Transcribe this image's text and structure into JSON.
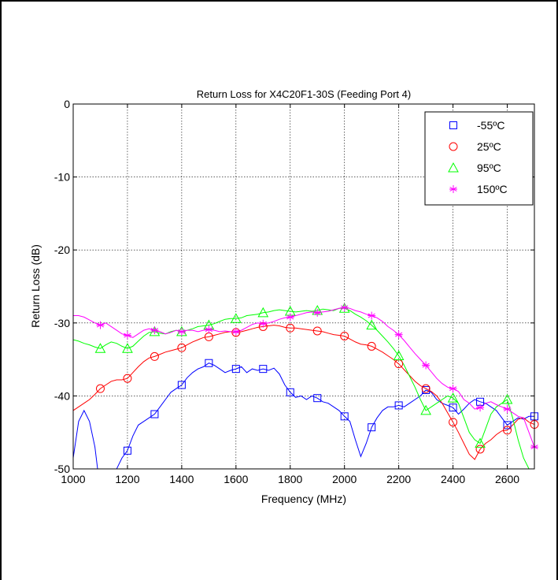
{
  "chart_data": {
    "type": "line",
    "title": "Return Loss for X4C20F1-30S (Feeding Port 4)",
    "xlabel": "Frequency (MHz)",
    "ylabel": "Return Loss (dB)",
    "xlim": [
      1000,
      2700
    ],
    "ylim": [
      -50,
      0
    ],
    "xticks": [
      1000,
      1200,
      1400,
      1600,
      1800,
      2000,
      2200,
      2400,
      2600
    ],
    "yticks": [
      0,
      -10,
      -20,
      -30,
      -40,
      -50
    ],
    "grid": true,
    "legend_position": "top-right",
    "series": [
      {
        "name": "-55ºC",
        "color": "#0000ff",
        "marker": "square",
        "x": [
          1000,
          1020,
          1040,
          1060,
          1080,
          1090,
          1100,
          1120,
          1140,
          1160,
          1180,
          1200,
          1220,
          1240,
          1260,
          1280,
          1300,
          1320,
          1340,
          1360,
          1380,
          1400,
          1420,
          1440,
          1460,
          1480,
          1500,
          1520,
          1540,
          1560,
          1580,
          1600,
          1620,
          1640,
          1660,
          1680,
          1700,
          1720,
          1740,
          1760,
          1780,
          1800,
          1820,
          1840,
          1860,
          1880,
          1900,
          1920,
          1940,
          1960,
          1980,
          2000,
          2020,
          2040,
          2060,
          2080,
          2100,
          2120,
          2140,
          2160,
          2180,
          2200,
          2220,
          2240,
          2260,
          2280,
          2300,
          2320,
          2340,
          2360,
          2380,
          2400,
          2420,
          2440,
          2460,
          2480,
          2500,
          2520,
          2540,
          2560,
          2580,
          2600,
          2620,
          2640,
          2660,
          2680,
          2700
        ],
        "y": [
          -48.5,
          -43.5,
          -42.0,
          -43.5,
          -47.0,
          -50.0,
          -53.0,
          -56.0,
          -54.0,
          -50.0,
          -48.5,
          -47.5,
          -45.5,
          -44.0,
          -43.5,
          -43.0,
          -42.5,
          -41.5,
          -40.5,
          -39.5,
          -39.0,
          -38.5,
          -37.5,
          -36.8,
          -36.3,
          -36.0,
          -35.5,
          -35.8,
          -36.3,
          -36.8,
          -36.5,
          -36.3,
          -36.0,
          -36.8,
          -36.3,
          -36.5,
          -36.3,
          -36.5,
          -36.2,
          -37.0,
          -38.5,
          -39.5,
          -40.2,
          -40.0,
          -40.5,
          -40.0,
          -40.3,
          -40.8,
          -41.0,
          -41.5,
          -42.0,
          -42.8,
          -43.5,
          -46.0,
          -48.3,
          -46.5,
          -44.3,
          -43.0,
          -42.0,
          -41.5,
          -41.5,
          -41.3,
          -41.5,
          -41.0,
          -40.5,
          -40.0,
          -39.2,
          -39.5,
          -40.5,
          -41.0,
          -41.3,
          -41.6,
          -42.5,
          -41.8,
          -41.0,
          -40.5,
          -40.8,
          -41.0,
          -41.5,
          -42.0,
          -43.0,
          -44.0,
          -43.5,
          -43.0,
          -43.2,
          -42.8,
          -42.8
        ],
        "marker_x": [
          1200,
          1300,
          1400,
          1500,
          1600,
          1700,
          1800,
          1900,
          2000,
          2100,
          2200,
          2300,
          2400,
          2500,
          2600,
          2700
        ]
      },
      {
        "name": "25ºC",
        "color": "#ff0000",
        "marker": "circle",
        "x": [
          1000,
          1020,
          1040,
          1060,
          1080,
          1100,
          1120,
          1140,
          1160,
          1180,
          1200,
          1220,
          1240,
          1260,
          1280,
          1300,
          1320,
          1340,
          1360,
          1380,
          1400,
          1420,
          1440,
          1460,
          1480,
          1500,
          1520,
          1540,
          1560,
          1580,
          1600,
          1620,
          1640,
          1660,
          1680,
          1700,
          1720,
          1740,
          1760,
          1780,
          1800,
          1820,
          1840,
          1860,
          1880,
          1900,
          1920,
          1940,
          1960,
          1980,
          2000,
          2020,
          2040,
          2060,
          2080,
          2100,
          2120,
          2140,
          2160,
          2180,
          2200,
          2220,
          2240,
          2260,
          2280,
          2300,
          2320,
          2340,
          2360,
          2380,
          2400,
          2420,
          2440,
          2460,
          2480,
          2500,
          2520,
          2540,
          2560,
          2580,
          2600,
          2620,
          2640,
          2660,
          2680,
          2700
        ],
        "y": [
          -42.0,
          -41.5,
          -41.0,
          -40.5,
          -39.8,
          -39.0,
          -38.5,
          -38.0,
          -37.8,
          -37.8,
          -37.6,
          -36.8,
          -36.0,
          -35.3,
          -34.8,
          -34.6,
          -34.3,
          -34.0,
          -33.8,
          -33.6,
          -33.4,
          -33.0,
          -32.6,
          -32.3,
          -32.0,
          -31.9,
          -31.7,
          -31.5,
          -31.3,
          -31.2,
          -31.3,
          -31.2,
          -31.0,
          -30.8,
          -30.6,
          -30.5,
          -30.4,
          -30.3,
          -30.4,
          -30.6,
          -30.7,
          -30.7,
          -30.8,
          -30.9,
          -31.0,
          -31.1,
          -31.2,
          -31.4,
          -31.6,
          -31.7,
          -31.8,
          -32.2,
          -32.6,
          -32.9,
          -33.0,
          -33.2,
          -33.6,
          -34.0,
          -34.5,
          -35.0,
          -35.6,
          -36.4,
          -37.2,
          -38.0,
          -38.6,
          -39.0,
          -39.4,
          -40.0,
          -41.0,
          -42.3,
          -43.6,
          -45.0,
          -46.5,
          -48.0,
          -48.7,
          -47.3,
          -46.5,
          -46.0,
          -45.3,
          -44.8,
          -44.7,
          -44.0,
          -43.2,
          -43.0,
          -43.6,
          -43.9
        ],
        "marker_x": [
          1100,
          1200,
          1300,
          1400,
          1500,
          1600,
          1700,
          1800,
          1900,
          2000,
          2100,
          2200,
          2300,
          2400,
          2500,
          2600,
          2700
        ]
      },
      {
        "name": "95ºC",
        "color": "#00ff00",
        "marker": "triangle",
        "x": [
          1000,
          1020,
          1040,
          1060,
          1080,
          1100,
          1120,
          1140,
          1160,
          1180,
          1200,
          1220,
          1240,
          1260,
          1280,
          1300,
          1320,
          1340,
          1360,
          1380,
          1400,
          1420,
          1440,
          1460,
          1480,
          1500,
          1520,
          1540,
          1560,
          1580,
          1600,
          1620,
          1640,
          1660,
          1680,
          1700,
          1720,
          1740,
          1760,
          1780,
          1800,
          1820,
          1840,
          1860,
          1880,
          1900,
          1920,
          1940,
          1960,
          1980,
          2000,
          2020,
          2040,
          2060,
          2080,
          2100,
          2120,
          2140,
          2160,
          2180,
          2200,
          2220,
          2240,
          2260,
          2280,
          2300,
          2320,
          2340,
          2360,
          2380,
          2400,
          2420,
          2440,
          2460,
          2480,
          2500,
          2520,
          2540,
          2560,
          2580,
          2600,
          2620,
          2640,
          2660,
          2680,
          2700
        ],
        "y": [
          -32.3,
          -32.5,
          -32.8,
          -33.0,
          -33.3,
          -33.5,
          -33.0,
          -32.6,
          -32.8,
          -33.2,
          -33.5,
          -33.2,
          -32.5,
          -31.8,
          -31.3,
          -31.2,
          -31.4,
          -31.5,
          -31.2,
          -31.0,
          -31.2,
          -31.0,
          -30.8,
          -30.5,
          -30.4,
          -30.3,
          -30.1,
          -29.8,
          -29.5,
          -29.4,
          -29.4,
          -29.3,
          -29.0,
          -28.9,
          -28.8,
          -28.6,
          -28.5,
          -28.3,
          -28.2,
          -28.3,
          -28.4,
          -28.5,
          -28.4,
          -28.3,
          -28.4,
          -28.3,
          -28.1,
          -28.2,
          -28.3,
          -28.0,
          -28.0,
          -28.3,
          -28.8,
          -29.2,
          -29.7,
          -30.3,
          -31.0,
          -31.8,
          -32.6,
          -33.5,
          -34.5,
          -35.8,
          -37.3,
          -38.8,
          -40.5,
          -42.0,
          -41.5,
          -41.0,
          -40.5,
          -40.0,
          -40.3,
          -41.0,
          -43.0,
          -45.0,
          -46.0,
          -46.5,
          -44.5,
          -42.5,
          -41.5,
          -41.0,
          -40.5,
          -43.0,
          -46.0,
          -48.5,
          -50.0,
          -51.5
        ],
        "marker_x": [
          1100,
          1200,
          1300,
          1400,
          1500,
          1600,
          1700,
          1800,
          1900,
          2000,
          2100,
          2200,
          2300,
          2400,
          2500,
          2600
        ]
      },
      {
        "name": "150ºC",
        "color": "#ff00ff",
        "marker": "star",
        "x": [
          1000,
          1020,
          1040,
          1060,
          1080,
          1100,
          1120,
          1140,
          1160,
          1180,
          1200,
          1220,
          1240,
          1260,
          1280,
          1300,
          1320,
          1340,
          1360,
          1380,
          1400,
          1420,
          1440,
          1460,
          1480,
          1500,
          1520,
          1540,
          1560,
          1580,
          1600,
          1620,
          1640,
          1660,
          1680,
          1700,
          1720,
          1740,
          1760,
          1780,
          1800,
          1820,
          1840,
          1860,
          1880,
          1900,
          1920,
          1940,
          1960,
          1980,
          2000,
          2020,
          2040,
          2060,
          2080,
          2100,
          2120,
          2140,
          2160,
          2180,
          2200,
          2220,
          2240,
          2260,
          2280,
          2300,
          2320,
          2340,
          2360,
          2380,
          2400,
          2420,
          2440,
          2460,
          2480,
          2500,
          2520,
          2540,
          2560,
          2580,
          2600,
          2620,
          2640,
          2660,
          2680,
          2700
        ],
        "y": [
          -29.0,
          -29.0,
          -29.2,
          -29.6,
          -30.0,
          -30.3,
          -30.0,
          -30.5,
          -31.0,
          -31.5,
          -31.7,
          -32.0,
          -31.5,
          -31.0,
          -30.8,
          -31.0,
          -31.2,
          -31.5,
          -31.3,
          -31.0,
          -31.2,
          -31.0,
          -31.0,
          -31.2,
          -31.0,
          -30.9,
          -31.0,
          -31.2,
          -31.1,
          -31.2,
          -31.2,
          -31.0,
          -30.6,
          -30.2,
          -30.0,
          -30.1,
          -30.0,
          -29.8,
          -29.5,
          -29.3,
          -29.2,
          -29.0,
          -28.8,
          -28.6,
          -28.5,
          -28.6,
          -28.5,
          -28.4,
          -28.2,
          -28.0,
          -27.9,
          -28.0,
          -28.3,
          -28.5,
          -28.8,
          -29.0,
          -29.3,
          -29.8,
          -30.5,
          -31.0,
          -31.6,
          -32.4,
          -33.3,
          -34.2,
          -35.0,
          -35.8,
          -36.7,
          -37.6,
          -38.3,
          -38.8,
          -39.0,
          -39.4,
          -40.5,
          -41.0,
          -41.8,
          -41.6,
          -41.0,
          -40.8,
          -41.2,
          -41.5,
          -41.8,
          -42.3,
          -42.8,
          -43.0,
          -45.0,
          -47.0
        ],
        "marker_x": [
          1100,
          1200,
          1300,
          1400,
          1500,
          1600,
          1700,
          1800,
          1900,
          2000,
          2100,
          2200,
          2300,
          2400,
          2500,
          2600,
          2700
        ]
      }
    ]
  }
}
